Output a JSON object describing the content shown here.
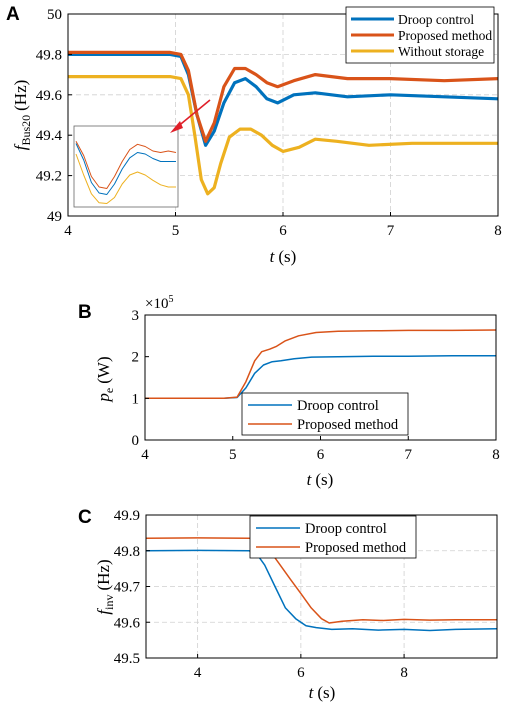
{
  "chart_data": [
    {
      "panel": "A",
      "type": "line",
      "xlabel": "t",
      "xunit": "(s)",
      "ylabel": "f",
      "ylabel_sub": "Bus20",
      "yunit": "(Hz)",
      "xlim": [
        4,
        8
      ],
      "ylim": [
        49,
        50
      ],
      "xticks": [
        "4",
        "5",
        "6",
        "7",
        "8"
      ],
      "yticks": [
        "49",
        "49.2",
        "49.4",
        "49.6",
        "49.8",
        "50"
      ],
      "grid": true,
      "legend_position": "top-right",
      "series": [
        {
          "name": "Droop control",
          "color": "#0072bd",
          "x": [
            4.0,
            4.8,
            4.95,
            5.05,
            5.12,
            5.2,
            5.28,
            5.36,
            5.45,
            5.55,
            5.65,
            5.75,
            5.85,
            5.95,
            6.1,
            6.3,
            6.6,
            7.0,
            7.5,
            8.0
          ],
          "y": [
            49.8,
            49.8,
            49.8,
            49.79,
            49.7,
            49.5,
            49.35,
            49.42,
            49.56,
            49.66,
            49.68,
            49.64,
            49.58,
            49.56,
            49.6,
            49.61,
            49.59,
            49.6,
            49.59,
            49.58
          ]
        },
        {
          "name": "Proposed method",
          "color": "#d95319",
          "x": [
            4.0,
            4.8,
            4.95,
            5.05,
            5.12,
            5.2,
            5.28,
            5.36,
            5.45,
            5.55,
            5.65,
            5.75,
            5.85,
            5.95,
            6.1,
            6.3,
            6.6,
            7.0,
            7.5,
            8.0
          ],
          "y": [
            49.81,
            49.81,
            49.81,
            49.8,
            49.72,
            49.5,
            49.37,
            49.46,
            49.64,
            49.73,
            49.73,
            49.7,
            49.66,
            49.64,
            49.67,
            49.7,
            49.68,
            49.68,
            49.67,
            49.68
          ]
        },
        {
          "name": "Without storage",
          "color": "#edb120",
          "x": [
            4.0,
            4.5,
            4.95,
            5.05,
            5.12,
            5.18,
            5.24,
            5.3,
            5.36,
            5.42,
            5.5,
            5.6,
            5.7,
            5.8,
            5.9,
            6.0,
            6.15,
            6.3,
            6.5,
            6.8,
            7.2,
            7.6,
            8.0
          ],
          "y": [
            49.69,
            49.69,
            49.69,
            49.68,
            49.6,
            49.4,
            49.18,
            49.11,
            49.14,
            49.26,
            49.39,
            49.43,
            49.43,
            49.4,
            49.35,
            49.32,
            49.34,
            49.38,
            49.37,
            49.35,
            49.36,
            49.36,
            49.36
          ]
        }
      ],
      "inset": {
        "series": [
          {
            "name": "Proposed method",
            "color": "#d95319",
            "y": [
              0.85,
              0.66,
              0.38,
              0.24,
              0.22,
              0.38,
              0.58,
              0.74,
              0.81,
              0.78,
              0.72,
              0.7,
              0.72,
              0.7
            ]
          },
          {
            "name": "Droop control",
            "color": "#0072bd",
            "y": [
              0.82,
              0.6,
              0.3,
              0.16,
              0.14,
              0.28,
              0.48,
              0.63,
              0.7,
              0.68,
              0.62,
              0.58,
              0.58,
              0.58
            ]
          },
          {
            "name": "Without storage",
            "color": "#edb120",
            "y": [
              0.68,
              0.4,
              0.15,
              0.03,
              0.02,
              0.1,
              0.28,
              0.4,
              0.44,
              0.4,
              0.33,
              0.27,
              0.24,
              0.24
            ]
          }
        ]
      }
    },
    {
      "panel": "B",
      "type": "line",
      "xlabel": "t",
      "xunit": "(s)",
      "ylabel": "p",
      "ylabel_sub": "e",
      "yunit": "(W)",
      "y_multiplier": "×10",
      "y_multiplier_exp": "5",
      "xlim": [
        4,
        8
      ],
      "ylim": [
        0,
        3
      ],
      "xticks": [
        "4",
        "5",
        "6",
        "7",
        "8"
      ],
      "yticks": [
        "0",
        "1",
        "2",
        "3"
      ],
      "grid": false,
      "legend_position": "bottom-right",
      "series": [
        {
          "name": "Droop control",
          "color": "#0072bd",
          "x": [
            4.0,
            4.9,
            5.05,
            5.15,
            5.25,
            5.35,
            5.45,
            5.55,
            5.7,
            5.9,
            6.2,
            6.6,
            7.0,
            7.5,
            8.0
          ],
          "y": [
            1.0,
            1.0,
            1.02,
            1.25,
            1.6,
            1.8,
            1.88,
            1.9,
            1.95,
            1.99,
            2.0,
            2.01,
            2.01,
            2.02,
            2.02
          ]
        },
        {
          "name": "Proposed method",
          "color": "#d95319",
          "x": [
            4.0,
            4.9,
            5.05,
            5.15,
            5.25,
            5.33,
            5.42,
            5.5,
            5.6,
            5.75,
            5.95,
            6.2,
            6.6,
            7.0,
            7.5,
            8.0
          ],
          "y": [
            1.0,
            1.0,
            1.03,
            1.4,
            1.9,
            2.12,
            2.18,
            2.25,
            2.38,
            2.5,
            2.58,
            2.61,
            2.62,
            2.63,
            2.63,
            2.64
          ]
        }
      ]
    },
    {
      "panel": "C",
      "type": "line",
      "xlabel": "t",
      "xunit": "(s)",
      "ylabel": "f",
      "ylabel_sub": "inv",
      "yunit": "(Hz)",
      "xlim": [
        3,
        9.8
      ],
      "ylim": [
        49.5,
        49.9
      ],
      "xticks": [
        "4",
        "6",
        "8"
      ],
      "xtick_values": [
        4,
        6,
        8
      ],
      "yticks": [
        "49.5",
        "49.6",
        "49.7",
        "49.8",
        "49.9"
      ],
      "grid": true,
      "legend_position": "top-right",
      "series": [
        {
          "name": "Droop control",
          "color": "#0072bd",
          "x": [
            3.0,
            4.0,
            5.0,
            5.15,
            5.3,
            5.5,
            5.7,
            5.9,
            6.1,
            6.3,
            6.6,
            7.0,
            7.5,
            8.0,
            8.5,
            9.0,
            9.8
          ],
          "y": [
            49.8,
            49.801,
            49.8,
            49.79,
            49.76,
            49.7,
            49.64,
            49.61,
            49.59,
            49.585,
            49.58,
            49.582,
            49.578,
            49.58,
            49.577,
            49.58,
            49.582
          ]
        },
        {
          "name": "Proposed method",
          "color": "#d95319",
          "x": [
            3.0,
            4.0,
            5.0,
            5.2,
            5.4,
            5.6,
            5.8,
            6.0,
            6.2,
            6.4,
            6.55,
            6.8,
            7.2,
            7.6,
            8.0,
            8.5,
            9.0,
            9.8
          ],
          "y": [
            49.835,
            49.836,
            49.835,
            49.83,
            49.8,
            49.76,
            49.72,
            49.68,
            49.64,
            49.61,
            49.598,
            49.603,
            49.607,
            49.605,
            49.608,
            49.606,
            49.607,
            49.607
          ]
        }
      ]
    }
  ]
}
